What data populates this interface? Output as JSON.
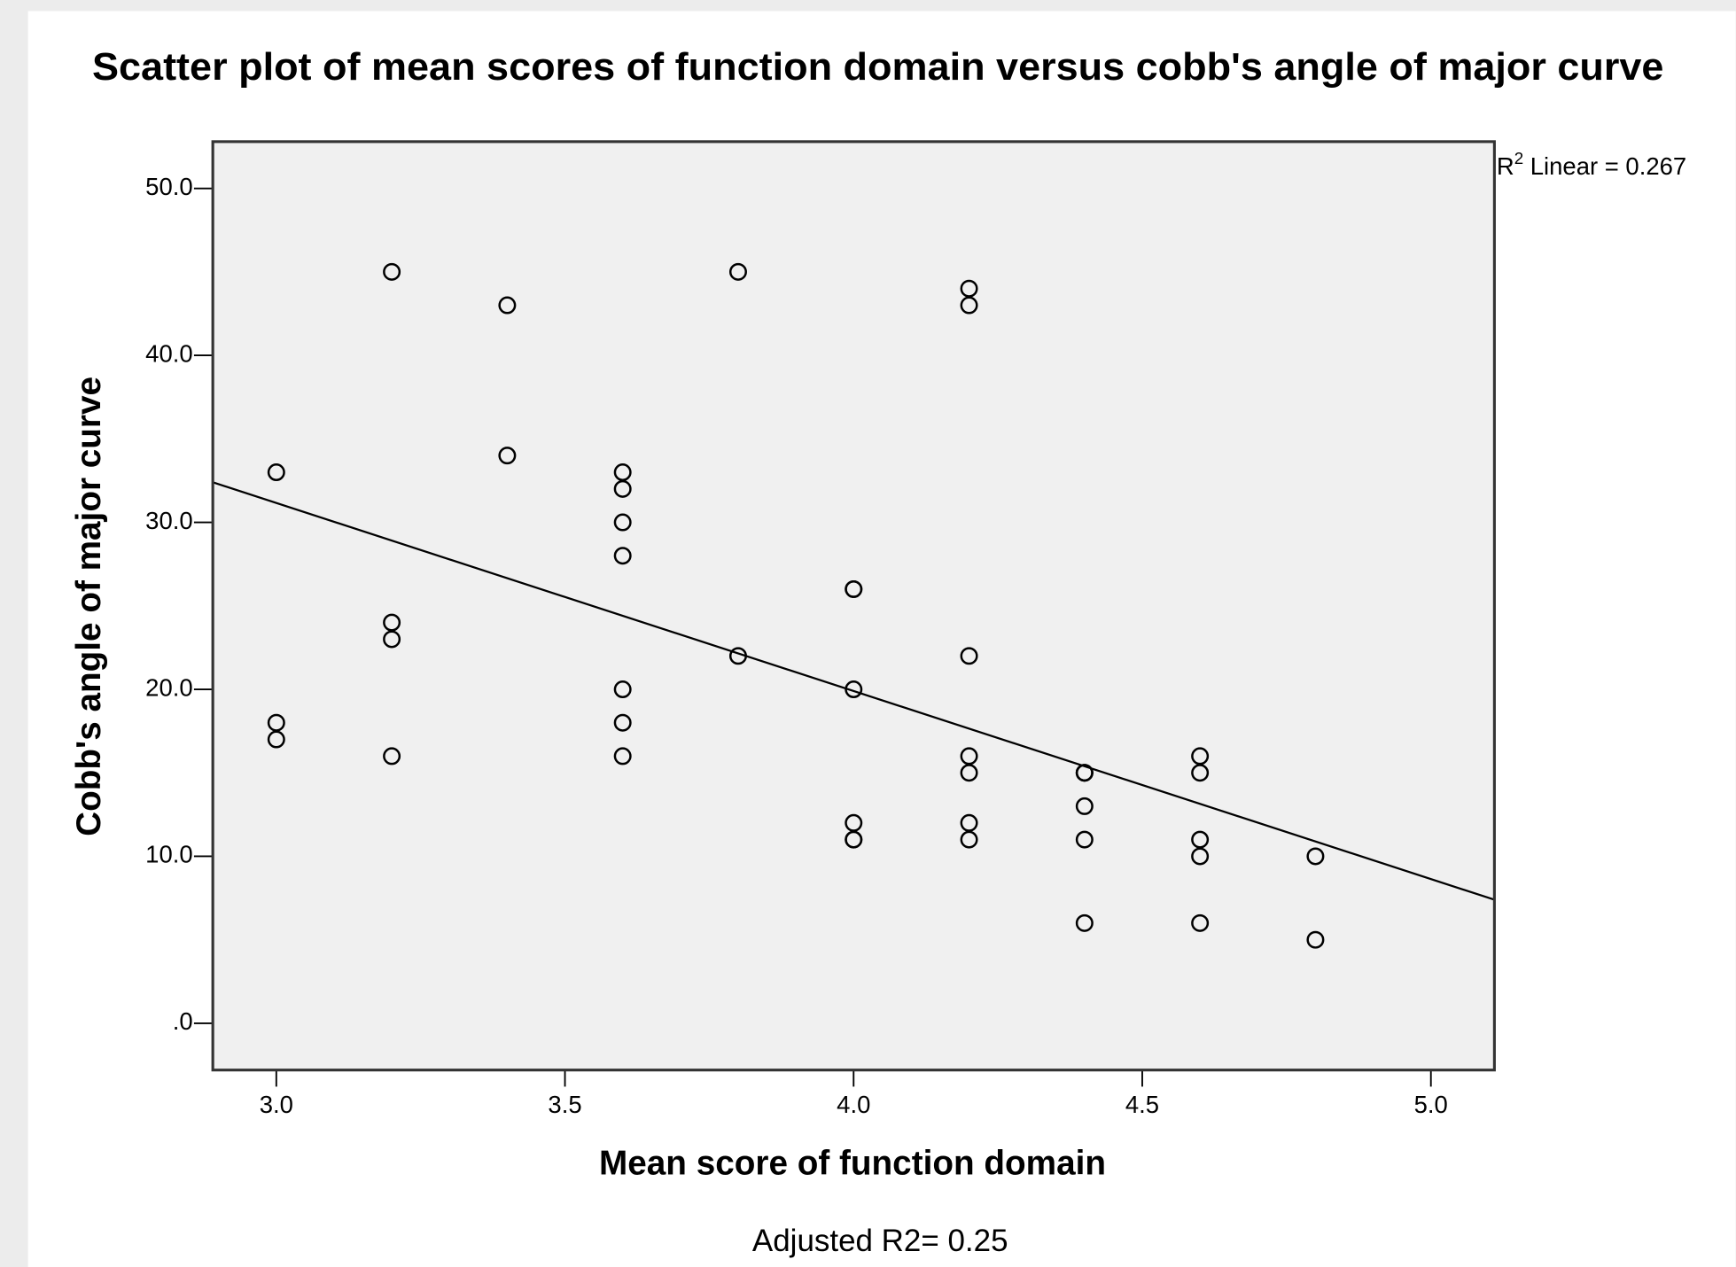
{
  "chart_data": {
    "type": "scatter",
    "title": "Scatter plot of mean scores of function domain versus cobb's angle of major curve",
    "x_label": "Mean score of function domain",
    "y_label": "Cobb's angle of major curve",
    "r2_annotation": {
      "base": "R",
      "sup": "2",
      "text": " Linear = 0.267"
    },
    "footer": "Adjusted R2= 0.25",
    "xlim": [
      2.89,
      5.11
    ],
    "ylim": [
      -2.8,
      52.8
    ],
    "xticks": [
      {
        "value": 3,
        "label": "3.0"
      },
      {
        "value": 3.5,
        "label": "3.5"
      },
      {
        "value": 4,
        "label": "4.0"
      },
      {
        "value": 4.5,
        "label": "4.5"
      },
      {
        "value": 5,
        "label": "5.0"
      }
    ],
    "yticks": [
      {
        "value": 0,
        "label": ".0"
      },
      {
        "value": 10,
        "label": "10.0"
      },
      {
        "value": 20,
        "label": "20.0"
      },
      {
        "value": 30,
        "label": "30.0"
      },
      {
        "value": 40,
        "label": "40.0"
      },
      {
        "value": 50,
        "label": "50.0"
      }
    ],
    "series": [
      {
        "color": "#000000",
        "x": [
          3.0,
          3.0,
          3.0,
          3.2,
          3.2,
          3.2,
          3.2,
          3.4,
          3.4,
          3.6,
          3.6,
          3.6,
          3.6,
          3.6,
          3.6,
          3.6,
          3.8,
          3.8,
          4.0,
          4.0,
          4.0,
          4.0,
          4.0,
          4.0,
          4.2,
          4.2,
          4.2,
          4.2,
          4.2,
          4.2,
          4.2,
          4.4,
          4.4,
          4.4,
          4.4,
          4.4,
          4.4,
          4.6,
          4.6,
          4.6,
          4.6,
          4.6,
          4.8,
          4.8
        ],
        "values": [
          33,
          18,
          17,
          45,
          24,
          23,
          16,
          43,
          34,
          33,
          32,
          30,
          28,
          20,
          18,
          16,
          45,
          22,
          26,
          26,
          20,
          12,
          11,
          11,
          44,
          43,
          22,
          16,
          15,
          12,
          11,
          15,
          15,
          15,
          13,
          11,
          6,
          16,
          15,
          11,
          10,
          6,
          10,
          5
        ]
      }
    ],
    "fit_line": {
      "x": [
        2.89,
        5.11
      ],
      "y": [
        32.4,
        7.4
      ]
    },
    "plot_background": "#f0f0f0"
  }
}
